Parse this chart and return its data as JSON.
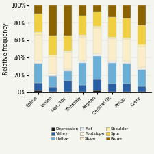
{
  "categories": [
    "Epirus",
    "Ionian",
    "Mac.-Thr.",
    "Thessaly",
    "Aegean",
    "Central Gr.",
    "Pelop.",
    "Crete"
  ],
  "segments": {
    "Depression": [
      0.02,
      0.01,
      0.01,
      0.01,
      0.02,
      0.01,
      0.01,
      0.01
    ],
    "Valley": [
      0.09,
      0.05,
      0.12,
      0.08,
      0.13,
      0.09,
      0.09,
      0.06
    ],
    "Hollow": [
      0.22,
      0.13,
      0.11,
      0.25,
      0.27,
      0.24,
      0.23,
      0.19
    ],
    "Flat": [
      0.01,
      0.01,
      0.01,
      0.01,
      0.01,
      0.01,
      0.01,
      0.01
    ],
    "Footslope": [
      0.03,
      0.02,
      0.02,
      0.02,
      0.02,
      0.02,
      0.02,
      0.02
    ],
    "Slope": [
      0.29,
      0.19,
      0.19,
      0.27,
      0.29,
      0.25,
      0.25,
      0.24
    ],
    "Shoulder": [
      0.03,
      0.02,
      0.02,
      0.02,
      0.02,
      0.02,
      0.02,
      0.02
    ],
    "Spur": [
      0.21,
      0.22,
      0.17,
      0.22,
      0.17,
      0.22,
      0.22,
      0.22
    ],
    "Ridge": [
      0.1,
      0.35,
      0.35,
      0.12,
      0.07,
      0.14,
      0.15,
      0.23
    ]
  },
  "colors": {
    "Depression": "#1c1c1c",
    "Valley": "#2b5fa3",
    "Hollow": "#6baed6",
    "Flat": "#e8f0f8",
    "Footslope": "#fdf5dc",
    "Slope": "#faedc8",
    "Shoulder": "#fdf0a0",
    "Spur": "#f0d040",
    "Ridge": "#8b6400"
  },
  "ylabel": "Relative frequency",
  "ylim": [
    0,
    1
  ],
  "yticks": [
    0,
    0.2,
    0.4,
    0.6,
    0.8,
    1.0
  ],
  "ytick_labels": [
    "0%",
    "20%",
    "40%",
    "60%",
    "80%",
    "100%"
  ],
  "legend_order": [
    "Depression",
    "Valley",
    "Hollow",
    "Flat",
    "Footslope",
    "Slope",
    "Shoulder",
    "Spur",
    "Ridge"
  ],
  "legend_ncol": 3,
  "bar_width": 0.55,
  "figure_size": [
    2.25,
    2.25
  ],
  "dpi": 100,
  "background_color": "#f5f5f0"
}
